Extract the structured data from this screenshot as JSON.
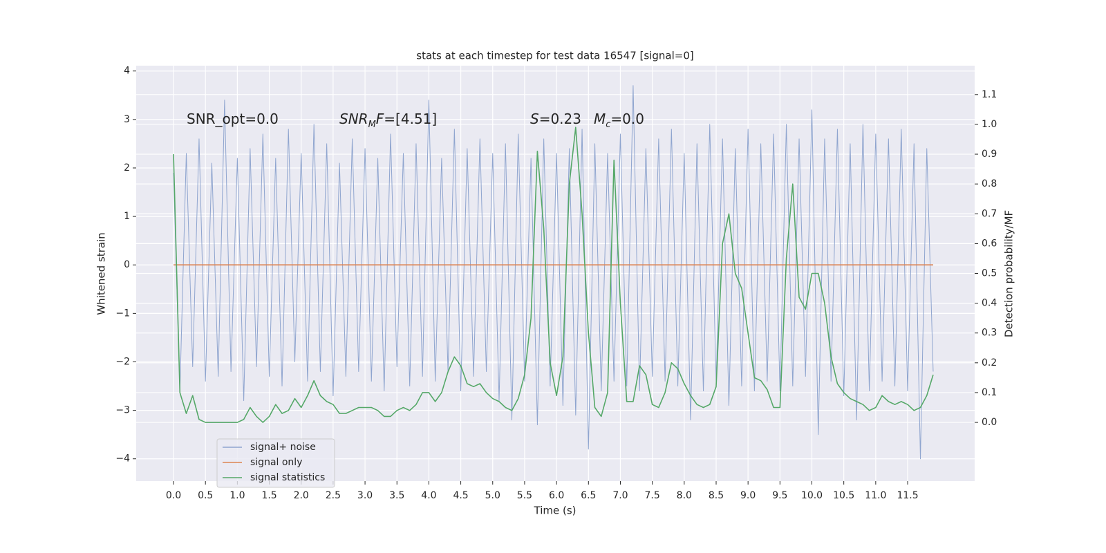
{
  "chart_data": {
    "type": "line",
    "title": "stats at each timestep for test data 16547 [signal=0]",
    "xlabel": "Time (s)",
    "ylabel": "Whitened strain",
    "y2label": "Detection probability/MF",
    "grid": true,
    "legend": "lower left",
    "annotations": [
      {
        "parts": [
          {
            "text": "SNR_opt=0.0"
          }
        ]
      },
      {
        "parts": [
          {
            "text": "SNR",
            "italic": true
          },
          {
            "text": "M",
            "italic": true,
            "sub": true
          },
          {
            "text": "F",
            "italic": true
          },
          {
            "text": "=[4.51]"
          }
        ]
      },
      {
        "parts": [
          {
            "text": "S",
            "italic": true
          },
          {
            "text": "=0.23"
          }
        ]
      },
      {
        "parts": [
          {
            "text": "M",
            "italic": true
          },
          {
            "text": "c",
            "italic": true,
            "sub": true
          },
          {
            "text": "=0.0"
          }
        ]
      }
    ],
    "xlim": [
      -0.585,
      12.55
    ],
    "ylim": [
      -4.46,
      4.11
    ],
    "y2lim": [
      -0.197,
      1.197
    ],
    "xticks": [
      {
        "value": 0,
        "label": "0.0"
      },
      0.5,
      {
        "value": 1,
        "label": "1.0"
      },
      1.5,
      {
        "value": 2,
        "label": "2.0"
      },
      2.5,
      {
        "value": 3,
        "label": "3.0"
      },
      3.5,
      {
        "value": 4,
        "label": "4.0"
      },
      4.5,
      {
        "value": 5,
        "label": "5.0"
      },
      5.5,
      {
        "value": 6,
        "label": "6.0"
      },
      6.5,
      {
        "value": 7,
        "label": "7.0"
      },
      7.5,
      {
        "value": 8,
        "label": "8.0"
      },
      8.5,
      {
        "value": 9,
        "label": "9.0"
      },
      9.5,
      {
        "value": 10,
        "label": "10.0"
      },
      10.5,
      {
        "value": 11,
        "label": "11.0"
      },
      11.5
    ],
    "yticks": [
      {
        "value": -4,
        "label": "−4"
      },
      {
        "value": -3,
        "label": "−3"
      },
      {
        "value": -2,
        "label": "−2"
      },
      {
        "value": -1,
        "label": "−1"
      },
      0,
      1,
      2,
      3,
      4
    ],
    "y2ticks": [
      {
        "value": 0,
        "label": "0.0"
      },
      0.1,
      0.2,
      0.3,
      0.4,
      0.5,
      0.6,
      0.7,
      0.8,
      0.9,
      {
        "value": 1,
        "label": "1.0"
      },
      1.1
    ],
    "x": [
      0,
      0.1,
      0.2,
      0.3,
      0.4,
      0.5,
      0.6,
      0.7,
      0.8,
      0.9,
      1,
      1.1,
      1.2,
      1.3,
      1.4,
      1.5,
      1.6,
      1.7,
      1.8,
      1.9,
      2,
      2.1,
      2.2,
      2.3,
      2.4,
      2.5,
      2.6,
      2.7,
      2.8,
      2.9,
      3,
      3.1,
      3.2,
      3.3,
      3.4,
      3.5,
      3.6,
      3.7,
      3.8,
      3.9,
      4,
      4.1,
      4.2,
      4.3,
      4.4,
      4.5,
      4.6,
      4.7,
      4.8,
      4.9,
      5,
      5.1,
      5.2,
      5.3,
      5.4,
      5.5,
      5.6,
      5.7,
      5.8,
      5.9,
      6,
      6.1,
      6.2,
      6.3,
      6.4,
      6.5,
      6.6,
      6.7,
      6.8,
      6.9,
      7,
      7.1,
      7.2,
      7.3,
      7.4,
      7.5,
      7.6,
      7.7,
      7.8,
      7.9,
      8,
      8.1,
      8.2,
      8.3,
      8.4,
      8.5,
      8.6,
      8.7,
      8.8,
      8.9,
      9,
      9.1,
      9.2,
      9.3,
      9.4,
      9.5,
      9.6,
      9.7,
      9.8,
      9.9,
      10,
      10.1,
      10.2,
      10.3,
      10.4,
      10.5,
      10.6,
      10.7,
      10.8,
      10.9,
      11,
      11.1,
      11.2,
      11.3,
      11.4,
      11.5,
      11.6,
      11.7,
      11.8,
      11.9
    ],
    "series": [
      {
        "name": "signal+ noise",
        "color": "#8fa5cf",
        "values": [
          1.9,
          -2.6,
          2.3,
          -2.1,
          2.6,
          -2.4,
          2.1,
          -2.3,
          3.4,
          -2.2,
          2.2,
          -2.8,
          2.4,
          -2.1,
          2.7,
          -2.3,
          2.2,
          -2.5,
          2.8,
          -2.0,
          2.3,
          -2.4,
          2.9,
          -2.2,
          2.5,
          -2.7,
          2.1,
          -2.3,
          2.6,
          -2.2,
          2.4,
          -2.4,
          2.2,
          -2.6,
          2.7,
          -2.1,
          2.3,
          -2.5,
          2.5,
          -2.3,
          3.4,
          -2.4,
          2.2,
          -2.2,
          2.8,
          -2.6,
          2.4,
          -2.3,
          2.6,
          -2.2,
          2.3,
          -2.8,
          2.5,
          -3.2,
          2.7,
          -2.4,
          2.2,
          -3.3,
          2.6,
          -2.5,
          2.3,
          -2.9,
          2.4,
          -3.1,
          2.8,
          -3.8,
          2.5,
          -2.6,
          2.3,
          -2.4,
          2.7,
          -2.5,
          3.7,
          -2.6,
          2.4,
          -2.3,
          2.6,
          -2.4,
          2.8,
          -2.5,
          2.3,
          -3.2,
          2.5,
          -2.6,
          2.9,
          -2.4,
          2.6,
          -2.9,
          2.4,
          -2.5,
          2.8,
          -2.6,
          2.5,
          -2.4,
          2.7,
          -2.6,
          2.9,
          -2.5,
          2.6,
          -2.3,
          3.2,
          -3.5,
          2.6,
          -2.4,
          2.8,
          -2.7,
          2.5,
          -3.2,
          2.9,
          -2.6,
          2.7,
          -2.4,
          2.6,
          -2.5,
          2.8,
          -2.6,
          2.5,
          -4.0,
          2.4,
          -2.2
        ]
      },
      {
        "name": "signal only",
        "color": "#dd8452",
        "values": [
          0,
          0,
          0,
          0,
          0,
          0,
          0,
          0,
          0,
          0,
          0,
          0,
          0,
          0,
          0,
          0,
          0,
          0,
          0,
          0,
          0,
          0,
          0,
          0,
          0,
          0,
          0,
          0,
          0,
          0,
          0,
          0,
          0,
          0,
          0,
          0,
          0,
          0,
          0,
          0,
          0,
          0,
          0,
          0,
          0,
          0,
          0,
          0,
          0,
          0,
          0,
          0,
          0,
          0,
          0,
          0,
          0,
          0,
          0,
          0,
          0,
          0,
          0,
          0,
          0,
          0,
          0,
          0,
          0,
          0,
          0,
          0,
          0,
          0,
          0,
          0,
          0,
          0,
          0,
          0,
          0,
          0,
          0,
          0,
          0,
          0,
          0,
          0,
          0,
          0,
          0,
          0,
          0,
          0,
          0,
          0,
          0,
          0,
          0,
          0,
          0,
          0,
          0,
          0,
          0,
          0,
          0,
          0,
          0,
          0,
          0,
          0,
          0,
          0,
          0,
          0,
          0,
          0,
          0,
          0
        ]
      },
      {
        "name": "signal statistics",
        "color": "#55a868",
        "axis": "y2",
        "values": [
          0.9,
          0.1,
          0.03,
          0.09,
          0.01,
          0,
          0,
          0,
          0,
          0,
          0,
          0.01,
          0.05,
          0.02,
          0,
          0.02,
          0.06,
          0.03,
          0.04,
          0.08,
          0.05,
          0.09,
          0.14,
          0.09,
          0.07,
          0.06,
          0.03,
          0.03,
          0.04,
          0.05,
          0.05,
          0.05,
          0.04,
          0.02,
          0.02,
          0.04,
          0.05,
          0.04,
          0.06,
          0.1,
          0.1,
          0.07,
          0.1,
          0.17,
          0.22,
          0.19,
          0.13,
          0.12,
          0.13,
          0.1,
          0.08,
          0.07,
          0.05,
          0.04,
          0.08,
          0.16,
          0.35,
          0.91,
          0.65,
          0.2,
          0.09,
          0.22,
          0.8,
          0.99,
          0.7,
          0.3,
          0.05,
          0.02,
          0.1,
          0.88,
          0.4,
          0.07,
          0.07,
          0.19,
          0.16,
          0.06,
          0.05,
          0.1,
          0.2,
          0.18,
          0.13,
          0.09,
          0.06,
          0.05,
          0.06,
          0.12,
          0.6,
          0.7,
          0.5,
          0.45,
          0.3,
          0.15,
          0.14,
          0.11,
          0.05,
          0.05,
          0.55,
          0.8,
          0.42,
          0.38,
          0.5,
          0.5,
          0.4,
          0.22,
          0.13,
          0.1,
          0.08,
          0.07,
          0.06,
          0.04,
          0.05,
          0.09,
          0.07,
          0.06,
          0.07,
          0.06,
          0.04,
          0.05,
          0.09,
          0.16
        ]
      }
    ]
  }
}
